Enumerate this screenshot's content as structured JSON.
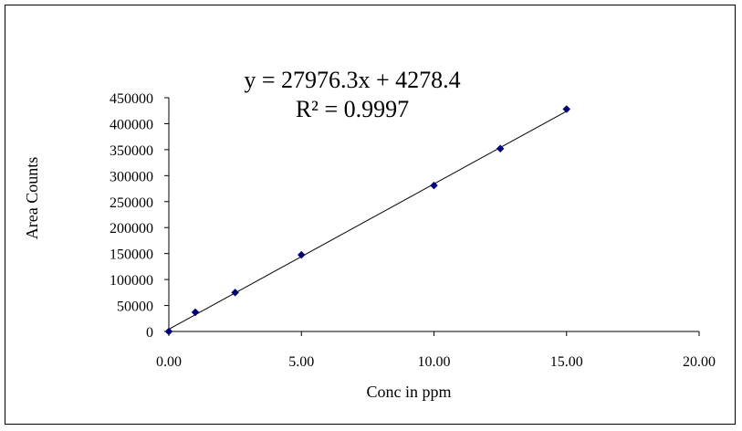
{
  "chart_data": {
    "type": "scatter",
    "xlabel": "Conc in ppm",
    "ylabel": "Area Counts",
    "xlim": [
      0,
      20
    ],
    "ylim": [
      0,
      450000
    ],
    "x_ticks": [
      "0.00",
      "5.00",
      "10.00",
      "15.00",
      "20.00"
    ],
    "y_ticks": [
      "0",
      "50000",
      "100000",
      "150000",
      "200000",
      "250000",
      "300000",
      "350000",
      "400000",
      "450000"
    ],
    "grid": false,
    "legend": "none",
    "series": [
      {
        "x": [
          0,
          1,
          2.5,
          5,
          10,
          12.5,
          15
        ],
        "y": [
          0,
          37000,
          75000,
          147500,
          281000,
          352000,
          428000
        ]
      }
    ],
    "trendline": {
      "type": "linear",
      "slope": 27976.3,
      "intercept": 4278.4,
      "equation": "y = 27976.3x + 4278.4",
      "r_squared": "R² = 0.9997"
    },
    "colors": {
      "marker": "#00007a",
      "line": "#000000",
      "axis": "#000000"
    }
  }
}
